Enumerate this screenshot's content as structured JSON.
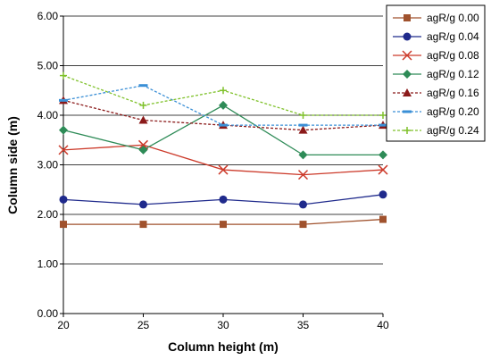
{
  "chart_data": {
    "type": "line",
    "title": "",
    "xlabel": "Column height (m)",
    "ylabel": "Column side (m)",
    "x": [
      20,
      25,
      30,
      35,
      40
    ],
    "xlim": [
      20,
      40
    ],
    "ylim": [
      0,
      6
    ],
    "xticks": [
      "20",
      "25",
      "30",
      "35",
      "40"
    ],
    "yticks": [
      "0.00",
      "1.00",
      "2.00",
      "3.00",
      "4.00",
      "5.00",
      "6.00"
    ],
    "grid": "horizontal",
    "legend_position": "top-right",
    "series": [
      {
        "name": "agR/g 0.00",
        "values": [
          1.8,
          1.8,
          1.8,
          1.8,
          1.9
        ],
        "color": "#a0522d",
        "marker": "square",
        "dash": false
      },
      {
        "name": "agR/g 0.04",
        "values": [
          2.3,
          2.2,
          2.3,
          2.2,
          2.4
        ],
        "color": "#1f2a8c",
        "marker": "circle",
        "dash": false
      },
      {
        "name": "agR/g 0.08",
        "values": [
          3.3,
          3.4,
          2.9,
          2.8,
          2.9
        ],
        "color": "#cc3a2a",
        "marker": "x",
        "dash": false
      },
      {
        "name": "agR/g 0.12",
        "values": [
          3.7,
          3.3,
          4.2,
          3.2,
          3.2
        ],
        "color": "#2e8b57",
        "marker": "diamond",
        "dash": false
      },
      {
        "name": "agR/g 0.16",
        "values": [
          4.3,
          3.9,
          3.8,
          3.7,
          3.8
        ],
        "color": "#8b1a1a",
        "marker": "triangle",
        "dash": true
      },
      {
        "name": "agR/g 0.20",
        "values": [
          4.3,
          4.6,
          3.8,
          3.8,
          3.8
        ],
        "color": "#3a8fd6",
        "marker": "dash",
        "dash": true
      },
      {
        "name": "agR/g 0.24",
        "values": [
          4.8,
          4.2,
          4.5,
          4.0,
          4.0
        ],
        "color": "#7fc12a",
        "marker": "plus",
        "dash": true
      }
    ]
  }
}
